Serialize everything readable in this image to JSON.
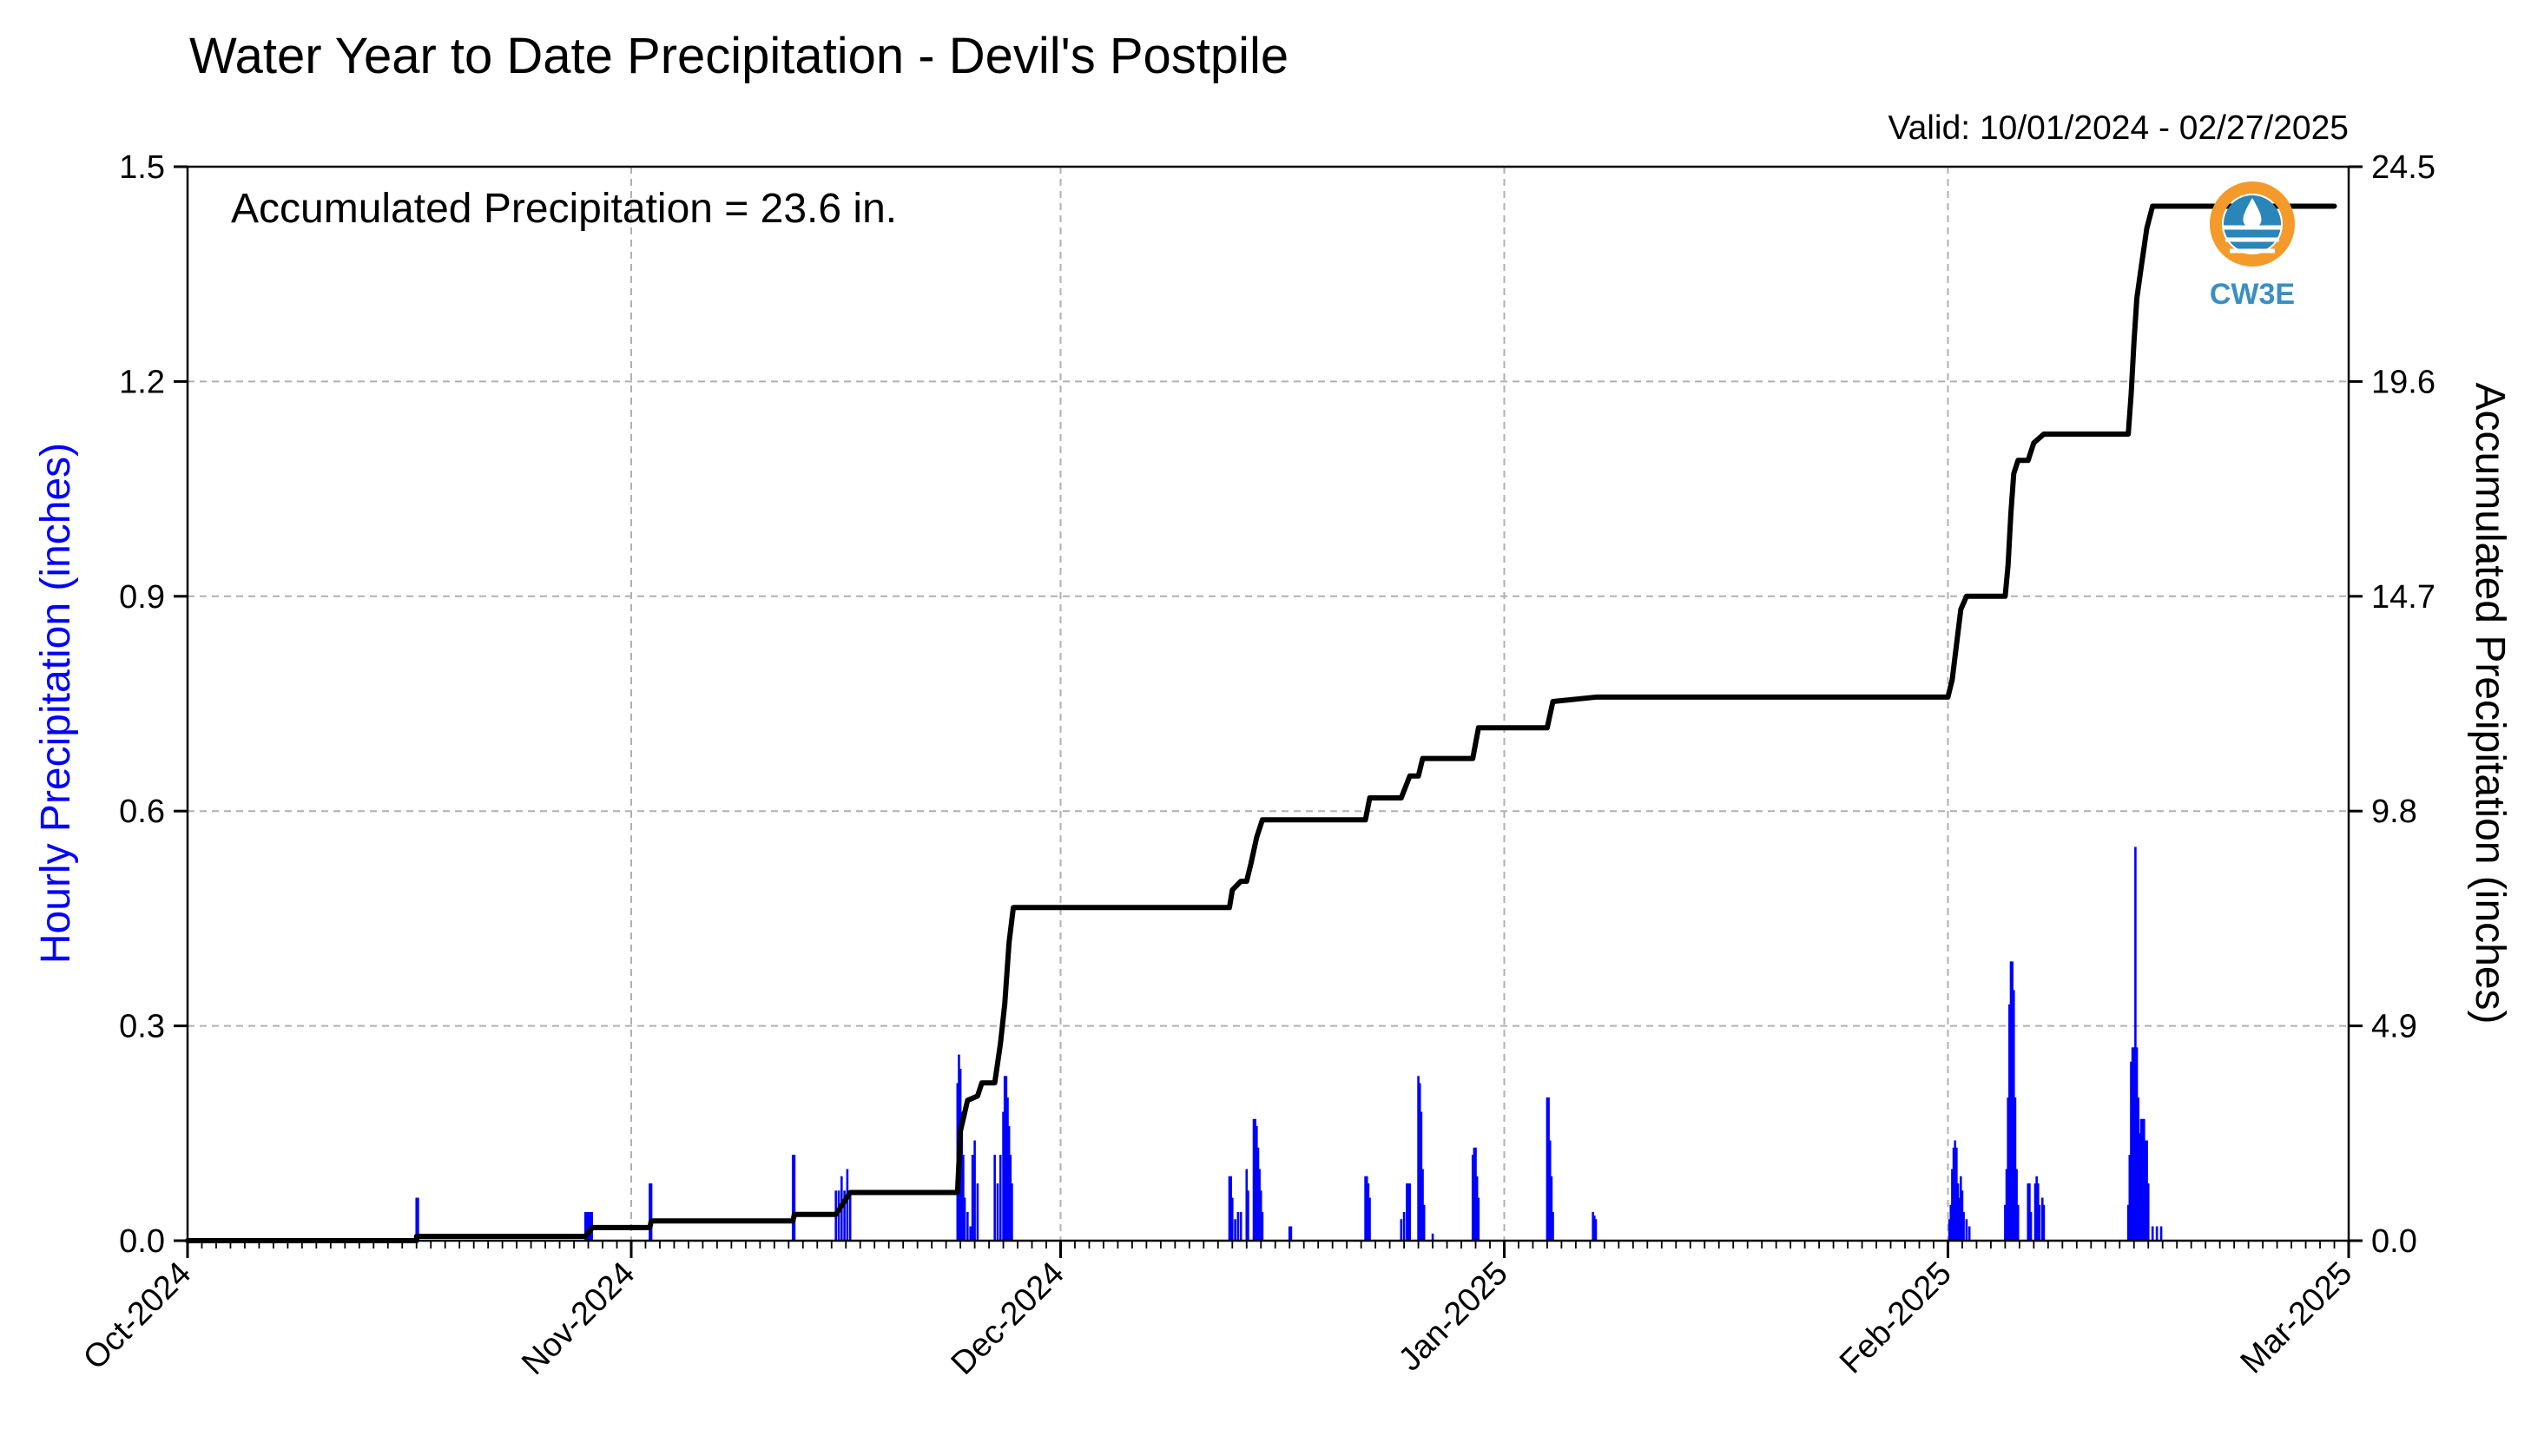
{
  "chart_data": {
    "type": "bar+line",
    "title": "Water Year to Date Precipitation - Devil's Postpile",
    "valid_label": "Valid: 10/01/2024 - 02/27/2025",
    "annotation": "Accumulated Precipitation = 23.6 in.",
    "ylabel_left": "Hourly Precipitation (inches)",
    "ylabel_right": "Accumulated Precipitation (inches)",
    "left_ylim": [
      0,
      1.5
    ],
    "right_ylim": [
      0,
      24.5
    ],
    "left_yticks": [
      "0.0",
      "0.3",
      "0.6",
      "0.9",
      "1.2",
      "1.5"
    ],
    "right_yticks": [
      "0.0",
      "4.9",
      "9.8",
      "14.7",
      "19.6",
      "24.5"
    ],
    "xlim_days": [
      0,
      151
    ],
    "xticks": [
      {
        "day": 0,
        "label": "Oct-2024"
      },
      {
        "day": 31,
        "label": "Nov-2024"
      },
      {
        "day": 61,
        "label": "Dec-2024"
      },
      {
        "day": 92,
        "label": "Jan-2025"
      },
      {
        "day": 123,
        "label": "Feb-2025"
      },
      {
        "day": 151,
        "label": "Mar-2025"
      }
    ],
    "grid": true,
    "colors": {
      "hourly": "#0000ff",
      "accumulated": "#000000",
      "grid": "#b0b0b0",
      "left_label": "#0000ff"
    },
    "series": [
      {
        "name": "Hourly Precipitation",
        "kind": "bar",
        "axis": "left",
        "points": [
          [
            16.0,
            0.06
          ],
          [
            16.1,
            0.06
          ],
          [
            27.8,
            0.04
          ],
          [
            27.95,
            0.04
          ],
          [
            28.1,
            0.04
          ],
          [
            28.25,
            0.04
          ],
          [
            32.3,
            0.08
          ],
          [
            32.4,
            0.08
          ],
          [
            42.3,
            0.12
          ],
          [
            42.4,
            0.12
          ],
          [
            45.3,
            0.07
          ],
          [
            45.5,
            0.07
          ],
          [
            45.7,
            0.09
          ],
          [
            45.9,
            0.07
          ],
          [
            46.1,
            0.1
          ],
          [
            46.3,
            0.07
          ],
          [
            53.8,
            0.22
          ],
          [
            53.9,
            0.26
          ],
          [
            54.0,
            0.24
          ],
          [
            54.1,
            0.18
          ],
          [
            54.2,
            0.12
          ],
          [
            54.3,
            0.06
          ],
          [
            54.5,
            0.04
          ],
          [
            54.7,
            0.02
          ],
          [
            54.85,
            0.12
          ],
          [
            55.0,
            0.14
          ],
          [
            55.2,
            0.08
          ],
          [
            56.4,
            0.12
          ],
          [
            56.6,
            0.08
          ],
          [
            56.8,
            0.12
          ],
          [
            57.0,
            0.18
          ],
          [
            57.1,
            0.23
          ],
          [
            57.2,
            0.23
          ],
          [
            57.3,
            0.2
          ],
          [
            57.4,
            0.16
          ],
          [
            57.5,
            0.12
          ],
          [
            57.6,
            0.08
          ],
          [
            72.8,
            0.09
          ],
          [
            72.9,
            0.09
          ],
          [
            73.0,
            0.06
          ],
          [
            73.2,
            0.03
          ],
          [
            73.4,
            0.04
          ],
          [
            73.6,
            0.04
          ],
          [
            74.0,
            0.1
          ],
          [
            74.1,
            0.07
          ],
          [
            74.5,
            0.17
          ],
          [
            74.6,
            0.17
          ],
          [
            74.7,
            0.16
          ],
          [
            74.8,
            0.13
          ],
          [
            74.9,
            0.1
          ],
          [
            75.0,
            0.07
          ],
          [
            75.1,
            0.04
          ],
          [
            77.0,
            0.02
          ],
          [
            77.1,
            0.02
          ],
          [
            82.3,
            0.09
          ],
          [
            82.4,
            0.09
          ],
          [
            82.5,
            0.08
          ],
          [
            82.6,
            0.06
          ],
          [
            84.8,
            0.03
          ],
          [
            85.0,
            0.04
          ],
          [
            85.2,
            0.08
          ],
          [
            85.3,
            0.08
          ],
          [
            85.4,
            0.08
          ],
          [
            86.0,
            0.23
          ],
          [
            86.1,
            0.22
          ],
          [
            86.2,
            0.18
          ],
          [
            86.3,
            0.1
          ],
          [
            86.4,
            0.05
          ],
          [
            87.0,
            0.01
          ],
          [
            89.8,
            0.12
          ],
          [
            89.9,
            0.13
          ],
          [
            90.0,
            0.13
          ],
          [
            90.1,
            0.09
          ],
          [
            90.2,
            0.06
          ],
          [
            95.0,
            0.2
          ],
          [
            95.1,
            0.2
          ],
          [
            95.2,
            0.14
          ],
          [
            95.3,
            0.09
          ],
          [
            95.4,
            0.04
          ],
          [
            98.2,
            0.04
          ],
          [
            98.3,
            0.035
          ],
          [
            98.4,
            0.03
          ],
          [
            123.1,
            0.03
          ],
          [
            123.2,
            0.05
          ],
          [
            123.3,
            0.1
          ],
          [
            123.4,
            0.13
          ],
          [
            123.5,
            0.14
          ],
          [
            123.6,
            0.13
          ],
          [
            123.7,
            0.08
          ],
          [
            123.8,
            0.06
          ],
          [
            123.9,
            0.09
          ],
          [
            124.0,
            0.07
          ],
          [
            124.1,
            0.04
          ],
          [
            124.3,
            0.03
          ],
          [
            124.5,
            0.02
          ],
          [
            127.0,
            0.05
          ],
          [
            127.1,
            0.1
          ],
          [
            127.2,
            0.2
          ],
          [
            127.3,
            0.33
          ],
          [
            127.4,
            0.39
          ],
          [
            127.5,
            0.39
          ],
          [
            127.6,
            0.35
          ],
          [
            127.7,
            0.2
          ],
          [
            127.8,
            0.1
          ],
          [
            127.9,
            0.05
          ],
          [
            128.6,
            0.08
          ],
          [
            128.7,
            0.08
          ],
          [
            128.8,
            0.04
          ],
          [
            129.1,
            0.08
          ],
          [
            129.2,
            0.09
          ],
          [
            129.3,
            0.08
          ],
          [
            129.4,
            0.05
          ],
          [
            129.6,
            0.06
          ],
          [
            129.7,
            0.05
          ],
          [
            135.6,
            0.05
          ],
          [
            135.7,
            0.12
          ],
          [
            135.8,
            0.25
          ],
          [
            135.9,
            0.27
          ],
          [
            136.0,
            0.27
          ],
          [
            136.1,
            0.55
          ],
          [
            136.2,
            0.27
          ],
          [
            136.3,
            0.2
          ],
          [
            136.4,
            0.15
          ],
          [
            136.5,
            0.17
          ],
          [
            136.6,
            0.17
          ],
          [
            136.7,
            0.17
          ],
          [
            136.8,
            0.14
          ],
          [
            136.9,
            0.14
          ],
          [
            137.0,
            0.08
          ],
          [
            137.3,
            0.02
          ],
          [
            137.6,
            0.02
          ],
          [
            137.9,
            0.02
          ]
        ]
      },
      {
        "name": "Accumulated Precipitation",
        "kind": "line",
        "axis": "right",
        "points": [
          [
            16.0,
            0.0
          ],
          [
            16.0,
            0.1
          ],
          [
            27.8,
            0.1
          ],
          [
            28.3,
            0.3
          ],
          [
            32.3,
            0.3
          ],
          [
            32.4,
            0.45
          ],
          [
            42.3,
            0.45
          ],
          [
            42.4,
            0.6
          ],
          [
            45.3,
            0.6
          ],
          [
            46.3,
            1.1
          ],
          [
            53.8,
            1.1
          ],
          [
            54.0,
            2.5
          ],
          [
            54.5,
            3.2
          ],
          [
            55.2,
            3.3
          ],
          [
            55.5,
            3.6
          ],
          [
            56.4,
            3.6
          ],
          [
            56.8,
            4.5
          ],
          [
            57.1,
            5.4
          ],
          [
            57.4,
            6.8
          ],
          [
            57.7,
            7.6
          ],
          [
            72.8,
            7.6
          ],
          [
            73.0,
            8.0
          ],
          [
            73.6,
            8.2
          ],
          [
            74.0,
            8.2
          ],
          [
            74.3,
            8.6
          ],
          [
            74.7,
            9.2
          ],
          [
            75.1,
            9.6
          ],
          [
            77.0,
            9.6
          ],
          [
            82.3,
            9.6
          ],
          [
            82.6,
            10.1
          ],
          [
            84.8,
            10.1
          ],
          [
            85.4,
            10.6
          ],
          [
            86.0,
            10.6
          ],
          [
            86.3,
            11.0
          ],
          [
            88.5,
            11.0
          ],
          [
            89.8,
            11.0
          ],
          [
            90.2,
            11.7
          ],
          [
            90.4,
            11.7
          ],
          [
            95.0,
            11.7
          ],
          [
            95.4,
            12.3
          ],
          [
            98.4,
            12.4
          ],
          [
            123.0,
            12.4
          ],
          [
            123.3,
            12.8
          ],
          [
            123.6,
            13.6
          ],
          [
            123.9,
            14.4
          ],
          [
            124.3,
            14.7
          ],
          [
            127.0,
            14.7
          ],
          [
            127.2,
            15.4
          ],
          [
            127.4,
            16.6
          ],
          [
            127.6,
            17.5
          ],
          [
            127.9,
            17.8
          ],
          [
            128.6,
            17.8
          ],
          [
            129.0,
            18.2
          ],
          [
            129.7,
            18.4
          ],
          [
            135.6,
            18.4
          ],
          [
            135.8,
            19.3
          ],
          [
            136.0,
            20.5
          ],
          [
            136.2,
            21.5
          ],
          [
            136.5,
            22.2
          ],
          [
            136.9,
            23.1
          ],
          [
            137.3,
            23.6
          ],
          [
            150.0,
            23.6
          ]
        ]
      }
    ]
  },
  "logo": {
    "text": "CW3E",
    "colors": {
      "orange": "#f39a2b",
      "blue": "#2a85b8",
      "text": "#3a8fc0"
    }
  }
}
